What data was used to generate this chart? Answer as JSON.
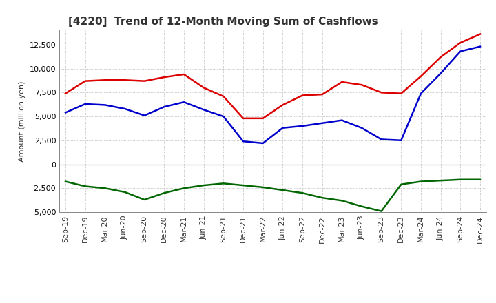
{
  "title": "[4220]  Trend of 12-Month Moving Sum of Cashflows",
  "ylabel": "Amount (million yen)",
  "x_labels": [
    "Sep-19",
    "Dec-19",
    "Mar-20",
    "Jun-20",
    "Sep-20",
    "Dec-20",
    "Mar-21",
    "Jun-21",
    "Sep-21",
    "Dec-21",
    "Mar-22",
    "Jun-22",
    "Sep-22",
    "Dec-22",
    "Mar-23",
    "Jun-23",
    "Sep-23",
    "Dec-23",
    "Mar-24",
    "Jun-24",
    "Sep-24",
    "Dec-24"
  ],
  "operating": [
    7400,
    8700,
    8800,
    8800,
    8700,
    9100,
    9400,
    8000,
    7100,
    4800,
    4800,
    6200,
    7200,
    7300,
    8600,
    8300,
    7500,
    7400,
    9200,
    11200,
    12700,
    13600
  ],
  "investing": [
    -1800,
    -2300,
    -2500,
    -2900,
    -3700,
    -3000,
    -2500,
    -2200,
    -2000,
    -2200,
    -2400,
    -2700,
    -3000,
    -3500,
    -3800,
    -4400,
    -4900,
    -2100,
    -1800,
    -1700,
    -1600,
    -1600
  ],
  "free": [
    5400,
    6300,
    6200,
    5800,
    5100,
    6000,
    6500,
    5700,
    5000,
    2400,
    2200,
    3800,
    4000,
    4300,
    4600,
    3800,
    2600,
    2500,
    7400,
    9500,
    11800,
    12300
  ],
  "op_color": "#dd0000",
  "inv_color": "#006600",
  "free_color": "#0000cc",
  "ylim": [
    -5000,
    14000
  ],
  "yticks": [
    -5000,
    -2500,
    0,
    2500,
    5000,
    7500,
    10000,
    12500
  ],
  "background_color": "#ffffff",
  "grid_color": "#999999",
  "linewidth": 1.8,
  "title_fontsize": 11,
  "axis_fontsize": 8,
  "ylabel_fontsize": 8
}
